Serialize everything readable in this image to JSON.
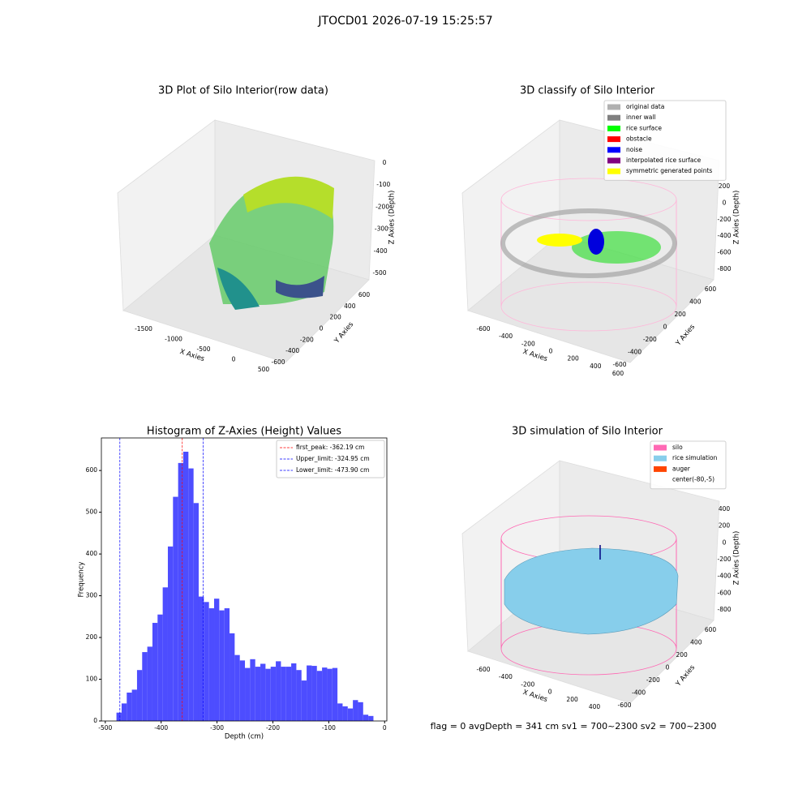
{
  "title": "JTOCD01 2026-07-19 15:25:57",
  "status": "flag = 0     avgDepth = 341 cm  sv1 = 700~2300  sv2 = 700~2300",
  "chart_data": [
    {
      "type": "scatter3d",
      "title": "3D Plot of Silo Interior(row data)",
      "xlabel": "X Axies",
      "ylabel": "Y Axies",
      "zlabel": "Z Axies (Depth)",
      "xticks": [
        -1500,
        -1000,
        -500,
        0,
        500
      ],
      "yticks": [
        -600,
        -400,
        -200,
        0,
        200,
        400,
        600
      ],
      "zticks": [
        -500,
        -400,
        -300,
        -200,
        -100,
        0
      ]
    },
    {
      "type": "scatter3d",
      "title": "3D classify of Silo Interior",
      "xlabel": "X Axies",
      "ylabel": "Y Axies",
      "zlabel": "Z Axies (Depth)",
      "xticks": [
        -600,
        -400,
        -200,
        0,
        200,
        400,
        600
      ],
      "yticks": [
        -600,
        -400,
        -200,
        0,
        200,
        400,
        600
      ],
      "zticks": [
        -800,
        -600,
        -400,
        -200,
        0,
        200
      ],
      "legend": [
        {
          "name": "original data",
          "color": "#b0b0b0"
        },
        {
          "name": "inner wall",
          "color": "#808080"
        },
        {
          "name": "rice surface",
          "color": "#00ff00"
        },
        {
          "name": "obstacle",
          "color": "#ff0000"
        },
        {
          "name": "noise",
          "color": "#0000ff"
        },
        {
          "name": "interpolated rice surface",
          "color": "#800080"
        },
        {
          "name": "symmetric generated points",
          "color": "#ffff00"
        }
      ]
    },
    {
      "type": "histogram",
      "title": "Histogram of Z-Axies (Height) Values",
      "xlabel": "Depth (cm)",
      "ylabel": "Frequency",
      "color": "#4d4dff",
      "bins": [
        -480,
        -470.8,
        -461.6,
        -452.4,
        -443.2,
        -434,
        -424.8,
        -415.6,
        -406.4,
        -397.2,
        -388,
        -378.8,
        -369.6,
        -360.4,
        -351.2,
        -342,
        -332.8,
        -323.6,
        -314.4,
        -305.2,
        -296,
        -286.8,
        -277.6,
        -268.4,
        -259.2,
        -250,
        -240.8,
        -231.6,
        -222.4,
        -213.2,
        -204,
        -194.8,
        -185.6,
        -176.4,
        -167.2,
        -158,
        -148.8,
        -139.6,
        -130.4,
        -121.2,
        -112,
        -102.8,
        -93.6,
        -84.4,
        -75.2,
        -66,
        -56.8,
        -47.6,
        -38.4,
        -29.2,
        -20
      ],
      "values": [
        20,
        42,
        68,
        75,
        122,
        165,
        178,
        235,
        255,
        320,
        418,
        537,
        618,
        645,
        605,
        522,
        298,
        285,
        270,
        293,
        265,
        270,
        210,
        158,
        145,
        127,
        148,
        130,
        137,
        125,
        130,
        143,
        130,
        130,
        138,
        122,
        97,
        133,
        132,
        120,
        128,
        125,
        127,
        42,
        35,
        30,
        50,
        45,
        15,
        12
      ],
      "xlim": [
        -507,
        4
      ],
      "ylim": [
        0,
        678
      ],
      "xticks": [
        -500,
        -400,
        -300,
        -200,
        -100,
        0
      ],
      "yticks": [
        0,
        100,
        200,
        300,
        400,
        500,
        600
      ],
      "vlines": [
        {
          "name": "first_peak: -362.19 cm",
          "value": -362.19,
          "color": "#ff0000"
        },
        {
          "name": "Upper_limit: -324.95 cm",
          "value": -324.95,
          "color": "#0000ff"
        },
        {
          "name": "Lower_limit: -473.90 cm",
          "value": -473.9,
          "color": "#0000ff"
        }
      ]
    },
    {
      "type": "surface3d",
      "title": "3D simulation of Silo Interior",
      "xlabel": "X Axies",
      "ylabel": "Y Axies",
      "zlabel": "Z Axies (Depth)",
      "xticks": [
        -600,
        -400,
        -200,
        0,
        200,
        400
      ],
      "yticks": [
        -600,
        -400,
        -200,
        0,
        200,
        400,
        600
      ],
      "zticks": [
        -800,
        -600,
        -400,
        -200,
        0,
        200,
        400
      ],
      "legend": [
        {
          "name": "silo",
          "color": "#ff69b4"
        },
        {
          "name": "rice simulation",
          "color": "#87ceeb"
        },
        {
          "name": "auger",
          "color": "#ff4500"
        },
        {
          "name": "center(-80,-5)",
          "color": "#ffffff"
        }
      ]
    }
  ]
}
